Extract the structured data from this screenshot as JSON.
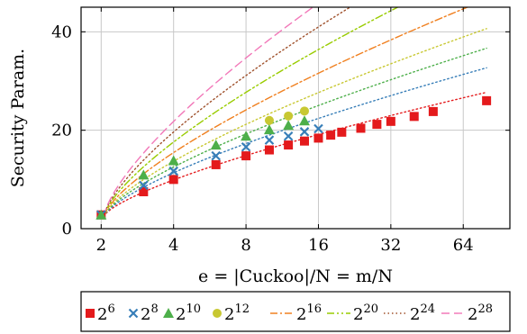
{
  "chart_data": {
    "type": "scatter",
    "xlabel": "e = |Cuckoo|/N = m/N",
    "ylabel": "Security Param.",
    "xscale": "log2",
    "xlim": [
      1.65,
      100
    ],
    "ylim": [
      0,
      45
    ],
    "grid": true,
    "legend_placement": "bottom",
    "x_ticks": [
      {
        "value": 2,
        "label": "2"
      },
      {
        "value": 4,
        "label": "4"
      },
      {
        "value": 8,
        "label": "8"
      },
      {
        "value": 16,
        "label": "16"
      },
      {
        "value": 32,
        "label": "32"
      },
      {
        "value": 64,
        "label": "64"
      }
    ],
    "y_ticks": [
      {
        "value": 0,
        "label": "0"
      },
      {
        "value": 20,
        "label": "20"
      },
      {
        "value": 40,
        "label": "40"
      }
    ],
    "series": [
      {
        "name": "2^6",
        "base": "2",
        "exp": "6",
        "marker": "square",
        "color": "#e41a1c",
        "x": [
          2,
          3,
          4,
          6,
          8,
          10,
          12,
          14,
          16,
          18,
          20,
          24,
          28,
          32,
          40,
          48,
          80
        ],
        "y": [
          2.8,
          7.5,
          10,
          13,
          14.8,
          16,
          17,
          17.8,
          18.4,
          19,
          19.6,
          20.4,
          21.2,
          21.8,
          22.8,
          23.8,
          26
        ]
      },
      {
        "name": "2^8",
        "base": "2",
        "exp": "8",
        "marker": "cross",
        "color": "#377eb8",
        "x": [
          2,
          3,
          4,
          6,
          8,
          10,
          12,
          14,
          16
        ],
        "y": [
          2.8,
          8.8,
          11.7,
          14.8,
          16.6,
          18,
          18.8,
          19.7,
          20.3
        ]
      },
      {
        "name": "2^10",
        "base": "2",
        "exp": "10",
        "marker": "triangle",
        "color": "#4daf4a",
        "x": [
          2,
          3,
          4,
          6,
          8,
          10,
          12,
          14
        ],
        "y": [
          2.8,
          10.9,
          13.8,
          17,
          18.8,
          20.1,
          21,
          21.9
        ]
      },
      {
        "name": "2^12",
        "base": "2",
        "exp": "12",
        "marker": "circle",
        "color": "#c8c832",
        "x": [
          10,
          12,
          14
        ],
        "y": [
          22,
          22.9,
          23.9
        ]
      },
      {
        "name": "2^16",
        "base": "2",
        "exp": "16",
        "marker": "none",
        "color": "#f08020",
        "dash": "dashdot",
        "curve": {
          "a": 13.3,
          "k": 9.6,
          "x0": 2.05,
          "x1": 80
        }
      },
      {
        "name": "2^20",
        "base": "2",
        "exp": "20",
        "marker": "none",
        "color": "#99cc00",
        "dash": "dashdotdot",
        "curve": {
          "a": 15.5,
          "k": 11.4,
          "x0": 2.05,
          "x1": 80
        }
      },
      {
        "name": "2^24",
        "base": "2",
        "exp": "24",
        "marker": "none",
        "color": "#a0522d",
        "dash": "dotted",
        "curve": {
          "a": 17.6,
          "k": 13.0,
          "x0": 2.05,
          "x1": 80
        }
      },
      {
        "name": "2^28",
        "base": "2",
        "exp": "28",
        "marker": "none",
        "color": "#f279b9",
        "dash": "dashed",
        "curve": {
          "a": 19.8,
          "k": 14.7,
          "x0": 2.05,
          "x1": 80
        }
      }
    ],
    "extra_dotted": [
      {
        "color": "#e41a1c",
        "curve": {
          "a": 7.6,
          "k": 4.9,
          "x0": 2.05,
          "x1": 80
        }
      },
      {
        "color": "#377eb8",
        "curve": {
          "a": 9.1,
          "k": 6.0,
          "x0": 2.05,
          "x1": 80
        }
      },
      {
        "color": "#4daf4a",
        "curve": {
          "a": 10.3,
          "k": 6.9,
          "x0": 2.05,
          "x1": 80
        }
      },
      {
        "color": "#c8c832",
        "curve": {
          "a": 11.5,
          "k": 7.7,
          "x0": 2.05,
          "x1": 80
        }
      }
    ]
  }
}
